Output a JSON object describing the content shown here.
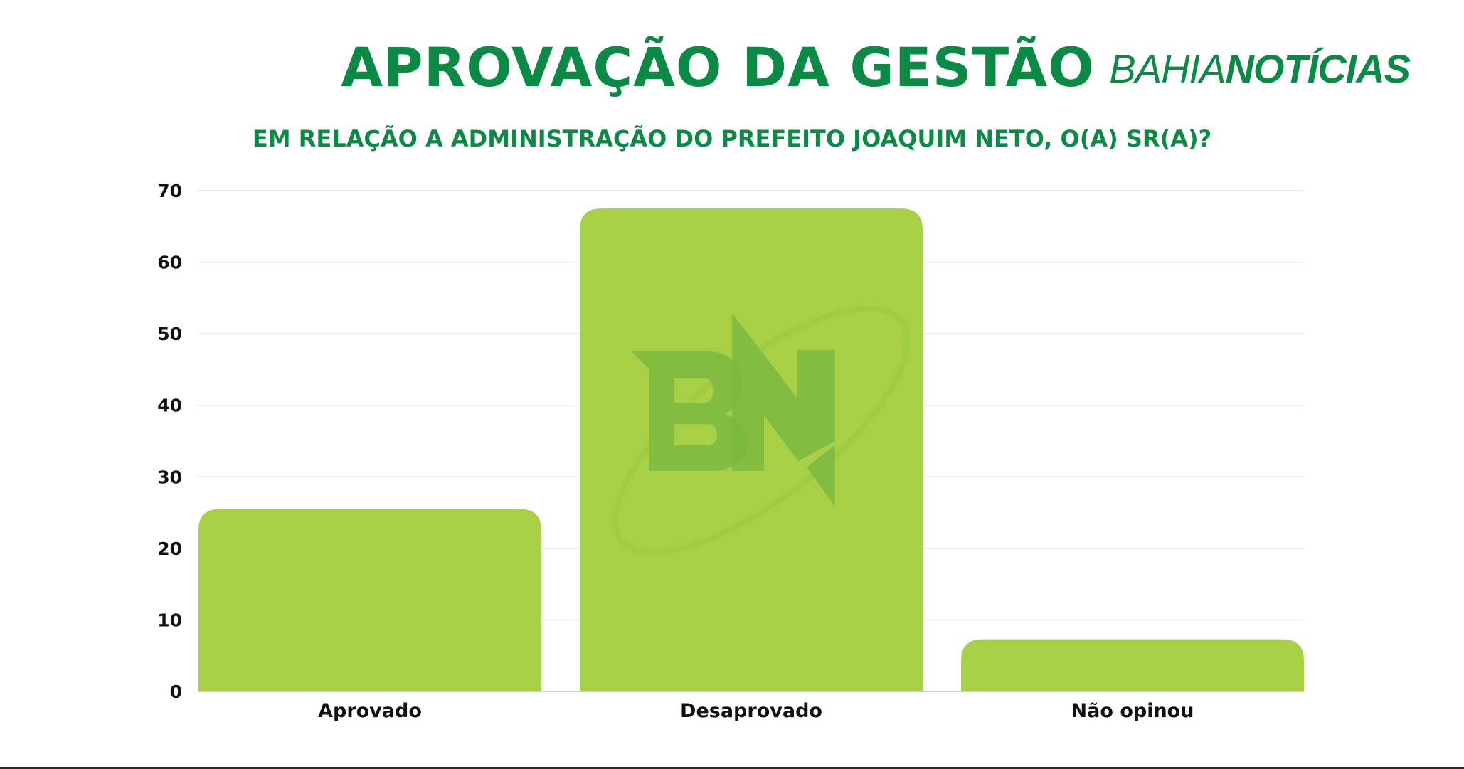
{
  "header": {
    "title": "APROVAÇÃO DA GESTÃO",
    "brand_light": "BAHIA",
    "brand_bold": "NOTÍCIAS",
    "subtitle": "EM RELAÇÃO A ADMINISTRAÇÃO DO PREFEITO JOAQUIM NETO, O(A) SR(A)?"
  },
  "watermark": {
    "text": "BN"
  },
  "colors": {
    "brand_green": "#0a8a45",
    "bar_fill": "#a8d046",
    "watermark": "#7bb840",
    "grid": "#dddddd"
  },
  "chart_data": {
    "type": "bar",
    "title": "APROVAÇÃO DA GESTÃO",
    "subtitle": "EM RELAÇÃO A ADMINISTRAÇÃO DO PREFEITO JOAQUIM NETO, O(A) SR(A)?",
    "categories": [
      "Aprovado",
      "Desaprovado",
      "Não opinou"
    ],
    "values": [
      25.5,
      67.5,
      7.3
    ],
    "xlabel": "",
    "ylabel": "",
    "ylim": [
      0,
      70
    ],
    "yticks": [
      0,
      10,
      20,
      30,
      40,
      50,
      60,
      70
    ],
    "grid": true,
    "legend": "none"
  }
}
